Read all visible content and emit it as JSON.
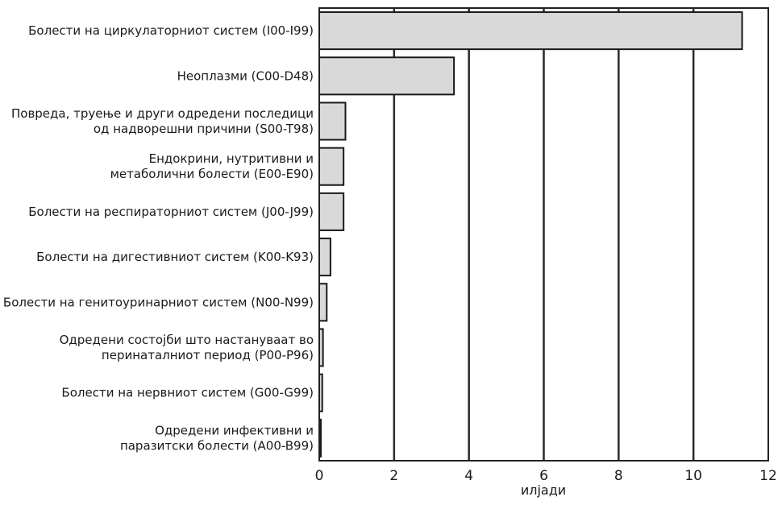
{
  "chart_data": {
    "type": "bar",
    "orientation": "horizontal",
    "title": "",
    "xlabel": "илјади",
    "ylabel": "",
    "xlim": [
      0,
      12
    ],
    "xticks": [
      "0",
      "2",
      "4",
      "6",
      "8",
      "10",
      "12"
    ],
    "grid": "vertical",
    "categories": [
      [
        "Болести на циркулаторниот систем (I00-I99)"
      ],
      [
        "Неоплазми (C00-D48)"
      ],
      [
        "Повреда, труење и други одредени последици",
        "од надворешни причини (S00-T98)"
      ],
      [
        "Ендокрини, нутритивни и",
        "метаболични болести (E00-E90)"
      ],
      [
        "Болести на респираторниот систем (J00-J99)"
      ],
      [
        "Болести на дигестивниот систем (K00-K93)"
      ],
      [
        "Болести на генитоуринарниот систем (N00-N99)"
      ],
      [
        "Одредени состојби што настануваат во",
        "перинаталниот период (P00-P96)"
      ],
      [
        "Болести на нервниот систем (G00-G99)"
      ],
      [
        "Одредени инфективни и",
        "паразитски болести (A00-B99)"
      ]
    ],
    "values": [
      11.3,
      3.6,
      0.7,
      0.65,
      0.65,
      0.3,
      0.2,
      0.1,
      0.08,
      0.03
    ],
    "bar_color": "#d9d9d9"
  }
}
